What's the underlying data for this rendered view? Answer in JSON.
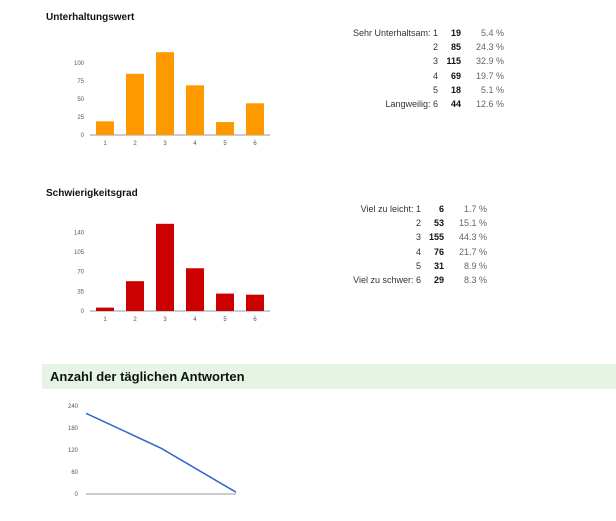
{
  "charts": [
    {
      "title": "Unterhaltungswert",
      "color": "#ff9900",
      "chart_data": {
        "type": "bar",
        "categories": [
          "1",
          "2",
          "3",
          "4",
          "5",
          "6"
        ],
        "values": [
          19,
          85,
          115,
          69,
          18,
          44
        ],
        "yticks": [
          0,
          25,
          50,
          75,
          100
        ],
        "ylim": [
          0,
          125
        ]
      },
      "rows": [
        {
          "label": "Sehr Unterhaltsam: 1",
          "count": "19",
          "pct": "5.4 %"
        },
        {
          "label": "2",
          "count": "85",
          "pct": "24.3 %"
        },
        {
          "label": "3",
          "count": "115",
          "pct": "32.9 %"
        },
        {
          "label": "4",
          "count": "69",
          "pct": "19.7 %"
        },
        {
          "label": "5",
          "count": "18",
          "pct": "5.1 %"
        },
        {
          "label": "Langweilig: 6",
          "count": "44",
          "pct": "12.6 %"
        }
      ]
    },
    {
      "title": "Schwierigkeitsgrad",
      "color": "#cc0000",
      "chart_data": {
        "type": "bar",
        "categories": [
          "1",
          "2",
          "3",
          "4",
          "5",
          "6"
        ],
        "values": [
          6,
          53,
          155,
          76,
          31,
          29
        ],
        "yticks": [
          0,
          35,
          70,
          105,
          140
        ],
        "ylim": [
          0,
          160
        ]
      },
      "rows": [
        {
          "label": "Viel zu leicht: 1",
          "count": "6",
          "pct": "1.7 %"
        },
        {
          "label": "2",
          "count": "53",
          "pct": "15.1 %"
        },
        {
          "label": "3",
          "count": "155",
          "pct": "44.3 %"
        },
        {
          "label": "4",
          "count": "76",
          "pct": "21.7 %"
        },
        {
          "label": "5",
          "count": "31",
          "pct": "8.9 %"
        },
        {
          "label": "Viel zu schwer: 6",
          "count": "29",
          "pct": "8.3 %"
        }
      ]
    }
  ],
  "daily": {
    "title": "Anzahl der täglichen Antworten",
    "color": "#3366cc",
    "chart_data": {
      "type": "line",
      "x": [
        0,
        1,
        2
      ],
      "values": [
        220,
        125,
        5
      ],
      "yticks": [
        0,
        60,
        120,
        180,
        240
      ],
      "ylim": [
        0,
        240
      ]
    }
  }
}
